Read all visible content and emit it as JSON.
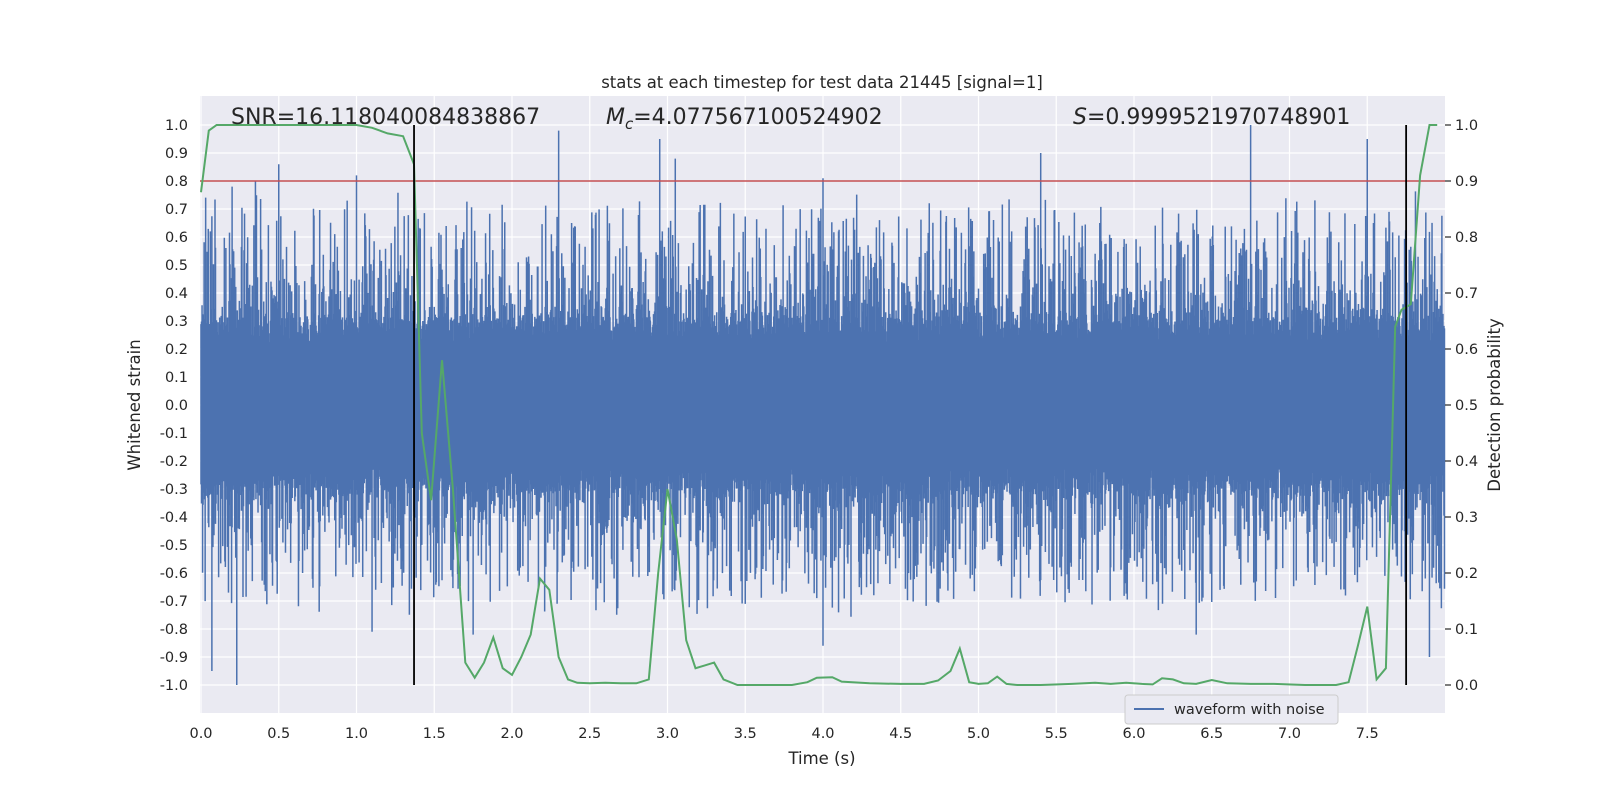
{
  "chart_data": {
    "type": "line",
    "title": "stats at each timestep for test data 21445 [signal=1]",
    "xlabel": "Time (s)",
    "ylabel": "Whitened strain",
    "ylabel_right": "Detection probability",
    "xlim": [
      0.0,
      8.0
    ],
    "ylim": [
      -1.1,
      1.1
    ],
    "ylim_right": [
      -0.05,
      1.0
    ],
    "x_ticks": [
      "0.0",
      "0.5",
      "1.0",
      "1.5",
      "2.0",
      "2.5",
      "3.0",
      "3.5",
      "4.0",
      "4.5",
      "5.0",
      "5.5",
      "6.0",
      "6.5",
      "7.0",
      "7.5"
    ],
    "y_ticks": [
      "1.0",
      "0.9",
      "0.8",
      "0.7",
      "0.6",
      "0.5",
      "0.4",
      "0.3",
      "0.2",
      "0.1",
      "0.0",
      "-0.1",
      "-0.2",
      "-0.3",
      "-0.4",
      "-0.5",
      "-0.6",
      "-0.7",
      "-0.8",
      "-0.9",
      "-1.0"
    ],
    "y_right_ticks": [
      "1.0",
      "0.9",
      "0.8",
      "0.7",
      "0.6",
      "0.5",
      "0.4",
      "0.3",
      "0.2",
      "0.1",
      "0.0"
    ],
    "annotations": {
      "snr": "SNR=16.118040084838867",
      "mc_symbol": "M",
      "mc_sub": "c",
      "mc_value": "=4.077567100524902",
      "s_symbol": "S",
      "s_value": "=0.9999521970748901"
    },
    "legend": {
      "label": "waveform with noise",
      "placement": "lower-right"
    },
    "threshold": {
      "value_right_axis": 0.9,
      "color": "#c44e52"
    },
    "vertical_lines": [
      1.37,
      7.75
    ],
    "grid": true,
    "colors": {
      "waveform": "#4c72b0",
      "probability": "#55a868",
      "threshold": "#c44e52",
      "vlines": "#000000",
      "background": "#eaeaf2"
    },
    "waveform": {
      "name": "waveform with noise",
      "description_range": [
        0.0,
        8.0
      ],
      "peaks": [
        {
          "x": 0.06,
          "y": 0.62
        },
        {
          "x": 0.2,
          "y": 0.78
        },
        {
          "x": 0.35,
          "y": 0.8
        },
        {
          "x": 0.5,
          "y": 0.86
        },
        {
          "x": 1.0,
          "y": 0.82
        },
        {
          "x": 2.3,
          "y": 0.98
        },
        {
          "x": 2.95,
          "y": 0.95
        },
        {
          "x": 3.05,
          "y": 0.88
        },
        {
          "x": 4.0,
          "y": 0.81
        },
        {
          "x": 5.4,
          "y": 0.9
        },
        {
          "x": 6.75,
          "y": 1.0
        },
        {
          "x": 7.5,
          "y": 0.95
        }
      ],
      "troughs": [
        {
          "x": 0.07,
          "y": -0.95
        },
        {
          "x": 0.23,
          "y": -1.0
        },
        {
          "x": 1.1,
          "y": -0.81
        },
        {
          "x": 1.75,
          "y": -0.82
        },
        {
          "x": 4.0,
          "y": -0.86
        },
        {
          "x": 6.4,
          "y": -0.82
        },
        {
          "x": 7.9,
          "y": -0.9
        }
      ]
    },
    "probability": {
      "name": "detection probability",
      "x": [
        0.0,
        0.05,
        0.1,
        0.2,
        0.3,
        0.5,
        0.7,
        0.9,
        1.0,
        1.1,
        1.15,
        1.2,
        1.3,
        1.37,
        1.42,
        1.48,
        1.55,
        1.62,
        1.7,
        1.76,
        1.82,
        1.88,
        1.94,
        2.0,
        2.06,
        2.12,
        2.18,
        2.24,
        2.3,
        2.36,
        2.42,
        2.5,
        2.6,
        2.7,
        2.8,
        2.88,
        2.94,
        3.0,
        3.06,
        3.12,
        3.18,
        3.24,
        3.3,
        3.36,
        3.45,
        3.6,
        3.8,
        3.9,
        3.96,
        4.06,
        4.12,
        4.3,
        4.5,
        4.65,
        4.74,
        4.82,
        4.88,
        4.94,
        5.0,
        5.06,
        5.12,
        5.18,
        5.25,
        5.4,
        5.6,
        5.75,
        5.85,
        5.95,
        6.05,
        6.12,
        6.18,
        6.25,
        6.32,
        6.4,
        6.5,
        6.6,
        6.75,
        6.9,
        7.1,
        7.3,
        7.38,
        7.44,
        7.5,
        7.56,
        7.62,
        7.68,
        7.72,
        7.78,
        7.84,
        7.9,
        7.95
      ],
      "y": [
        0.88,
        0.99,
        1.0,
        1.0,
        1.0,
        1.0,
        1.0,
        1.0,
        1.0,
        0.995,
        0.99,
        0.985,
        0.98,
        0.93,
        0.45,
        0.33,
        0.58,
        0.35,
        0.04,
        0.013,
        0.04,
        0.085,
        0.03,
        0.018,
        0.05,
        0.09,
        0.19,
        0.17,
        0.05,
        0.01,
        0.004,
        0.003,
        0.004,
        0.003,
        0.003,
        0.01,
        0.2,
        0.35,
        0.26,
        0.08,
        0.03,
        0.035,
        0.04,
        0.01,
        0.0,
        0.0,
        0.0,
        0.005,
        0.013,
        0.014,
        0.006,
        0.003,
        0.002,
        0.002,
        0.008,
        0.025,
        0.065,
        0.005,
        0.002,
        0.003,
        0.015,
        0.002,
        0.0,
        0.0,
        0.002,
        0.004,
        0.002,
        0.004,
        0.002,
        0.001,
        0.012,
        0.01,
        0.003,
        0.002,
        0.009,
        0.003,
        0.002,
        0.002,
        0.0,
        0.0,
        0.005,
        0.07,
        0.14,
        0.01,
        0.03,
        0.64,
        0.67,
        0.68,
        0.91,
        1.0,
        1.0
      ]
    }
  }
}
